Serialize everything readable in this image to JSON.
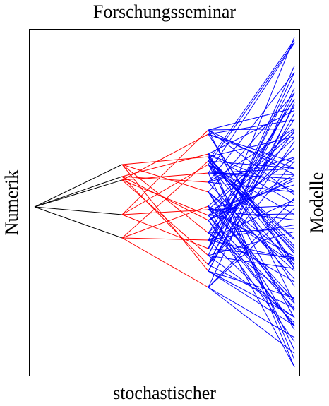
{
  "labels": {
    "top": "Forschungsseminar",
    "bottom": "stochastischer",
    "left": "Numerik",
    "right": "Modelle"
  },
  "colors": {
    "frame": "#000000",
    "level1": "#000000",
    "level2": "#ff0000",
    "level3": "#0000ff"
  }
}
